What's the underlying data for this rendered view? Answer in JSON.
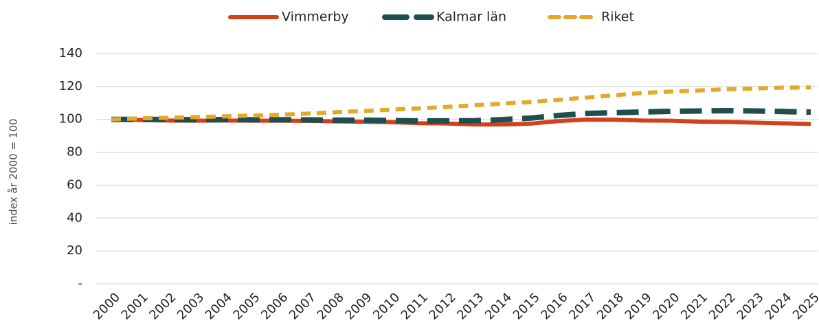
{
  "chart_data": {
    "type": "line",
    "y_label": "index år 2000 = 100",
    "categories": [
      "2000",
      "2001",
      "2002",
      "2003",
      "2004",
      "2005",
      "2006",
      "2007",
      "2008",
      "2009",
      "2010",
      "2011",
      "2012",
      "2013",
      "2014",
      "2015",
      "2016",
      "2017",
      "2018",
      "2019",
      "2020",
      "2021",
      "2022",
      "2023",
      "2024",
      "2025"
    ],
    "series": [
      {
        "name": "Vimmerby",
        "color": "#d0421b",
        "dash": "solid",
        "values": [
          100,
          99.6,
          99.3,
          99.2,
          99.3,
          99.2,
          99.2,
          99.1,
          98.8,
          98.6,
          98.3,
          97.7,
          97.5,
          96.9,
          96.9,
          97.4,
          99,
          99.9,
          99.8,
          99.3,
          99.2,
          98.6,
          98.4,
          98,
          97.6,
          97.2
        ]
      },
      {
        "name": "Kalmar län",
        "color": "#1f4e4f",
        "dash": "long",
        "values": [
          100,
          100,
          99.9,
          99.8,
          99.9,
          99.8,
          99.8,
          99.7,
          99.5,
          99.5,
          99.3,
          99.1,
          99.1,
          99.2,
          99.9,
          100.8,
          102.4,
          103.6,
          104.1,
          104.5,
          104.9,
          105.1,
          105.3,
          105.1,
          104.8,
          104.4
        ]
      },
      {
        "name": "Riket",
        "color": "#e6a82a",
        "dash": "short",
        "values": [
          100,
          100.6,
          101,
          101.4,
          101.8,
          102.3,
          102.8,
          103.5,
          104.3,
          105.1,
          105.9,
          106.7,
          107.6,
          108.6,
          109.6,
          110.6,
          111.9,
          113.3,
          114.7,
          116.1,
          116.9,
          117.6,
          118.3,
          118.8,
          119.3,
          119.4
        ]
      }
    ],
    "ylim": [
      0,
      140
    ],
    "yticks": [
      {
        "value": 0,
        "label": "-"
      },
      20,
      40,
      60,
      80,
      100,
      120,
      140
    ],
    "grid": true,
    "legend": "top"
  }
}
